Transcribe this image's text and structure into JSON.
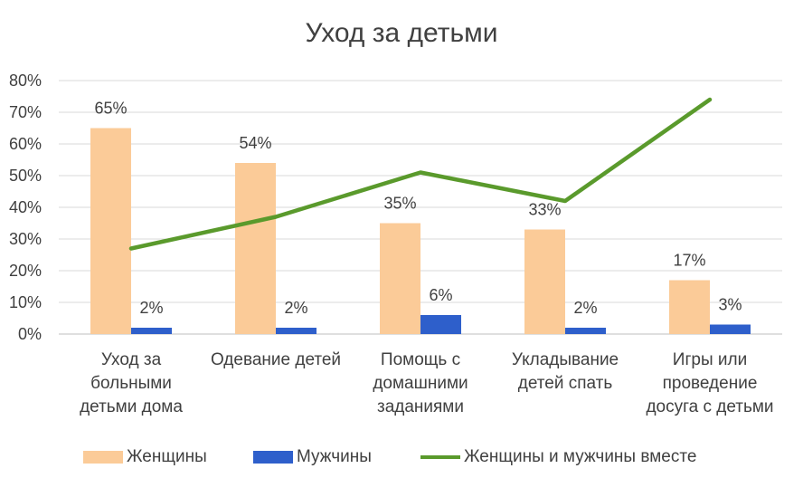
{
  "chart_data": {
    "type": "bar",
    "title": "Уход за детьми",
    "categories": [
      [
        "Уход за",
        "больными",
        "детьми дома"
      ],
      [
        "Одевание детей"
      ],
      [
        "Помощь с",
        "домашними",
        "заданиями"
      ],
      [
        "Укладывание",
        "детей спать"
      ],
      [
        "Игры или",
        "проведение",
        "досуга с детьми"
      ]
    ],
    "ylim": [
      0,
      80
    ],
    "yticks": [
      "0%",
      "10%",
      "20%",
      "30%",
      "40%",
      "50%",
      "60%",
      "70%",
      "80%"
    ],
    "grid": true,
    "legend_position": "bottom",
    "series": [
      {
        "name": "Женщины",
        "type": "bar",
        "color": "#FBCB98",
        "values": [
          65,
          54,
          35,
          33,
          17
        ],
        "labels": [
          "65%",
          "54%",
          "35%",
          "33%",
          "17%"
        ]
      },
      {
        "name": "Мужчины",
        "type": "bar",
        "color": "#2E5FCB",
        "values": [
          2,
          2,
          6,
          2,
          3
        ],
        "labels": [
          "2%",
          "2%",
          "6%",
          "2%",
          "3%"
        ]
      },
      {
        "name": "Женщины и мужчины вместе",
        "type": "line",
        "color": "#5A9A2C",
        "values": [
          27,
          37,
          51,
          42,
          74
        ]
      }
    ]
  }
}
